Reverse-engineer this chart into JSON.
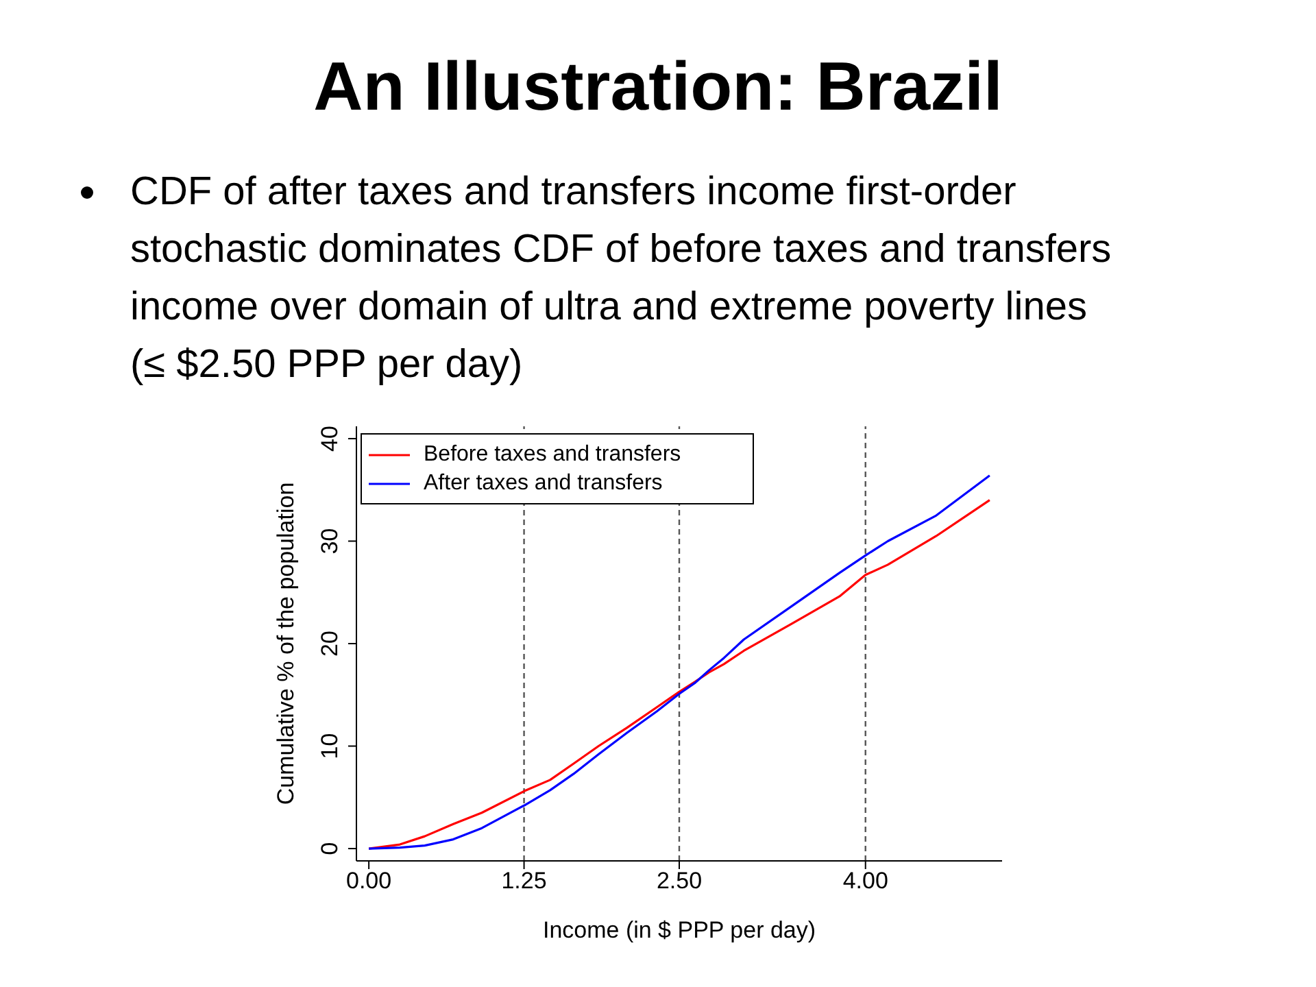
{
  "chart_data": {
    "type": "line",
    "title": "An Illustration: Brazil",
    "subtitle": "CDF of after taxes and transfers income first-order stochastic dominates CDF of before taxes and transfers income over domain of ultra and extreme poverty lines (≤ $2.50 PPP per day)",
    "xlabel": "Income (in $ PPP per day)",
    "ylabel": "Cumulative % of the population",
    "x": [
      0,
      0.25,
      0.45,
      0.68,
      0.91,
      1.25,
      1.46,
      1.65,
      1.85,
      2.08,
      2.32,
      2.5,
      2.63,
      2.74,
      2.86,
      3.02,
      3.4,
      3.79,
      4,
      4.18,
      4.57,
      5
    ],
    "series": [
      {
        "name": "Before taxes and transfers",
        "color": "#ff0000",
        "values": [
          0,
          0.4,
          1.2,
          2.4,
          3.5,
          5.6,
          6.7,
          8.3,
          10.0,
          11.8,
          13.8,
          15.3,
          16.3,
          17.2,
          18.0,
          19.3,
          21.9,
          24.6,
          26.7,
          27.7,
          30.5,
          34.0
        ]
      },
      {
        "name": "After taxes and transfers",
        "color": "#0000ff",
        "values": [
          0,
          0.1,
          0.3,
          0.9,
          2.0,
          4.2,
          5.7,
          7.3,
          9.2,
          11.3,
          13.4,
          15.1,
          16.2,
          17.4,
          18.6,
          20.4,
          23.6,
          26.9,
          28.6,
          30.0,
          32.5,
          36.4
        ]
      }
    ],
    "xlim": [
      -0.1,
      5.1
    ],
    "xticks": [
      {
        "value": 0,
        "label": "0.00"
      },
      {
        "value": 1.25,
        "label": "1.25"
      },
      {
        "value": 2.5,
        "label": "2.50"
      },
      {
        "value": 4,
        "label": "4.00"
      }
    ],
    "ylim": [
      -1.2,
      41.2
    ],
    "yticks": [
      0,
      10,
      20,
      30,
      40
    ],
    "ref_lines": [
      {
        "axis": "x",
        "value": 1.25,
        "color": "#555555",
        "line_style": "dashed"
      },
      {
        "axis": "x",
        "value": 2.5,
        "color": "#555555",
        "line_style": "dashed"
      },
      {
        "axis": "x",
        "value": 4,
        "color": "#555555",
        "line_style": "dashed"
      }
    ],
    "legend": "top left",
    "grid": false,
    "marker": "none",
    "line_style": "solid"
  }
}
